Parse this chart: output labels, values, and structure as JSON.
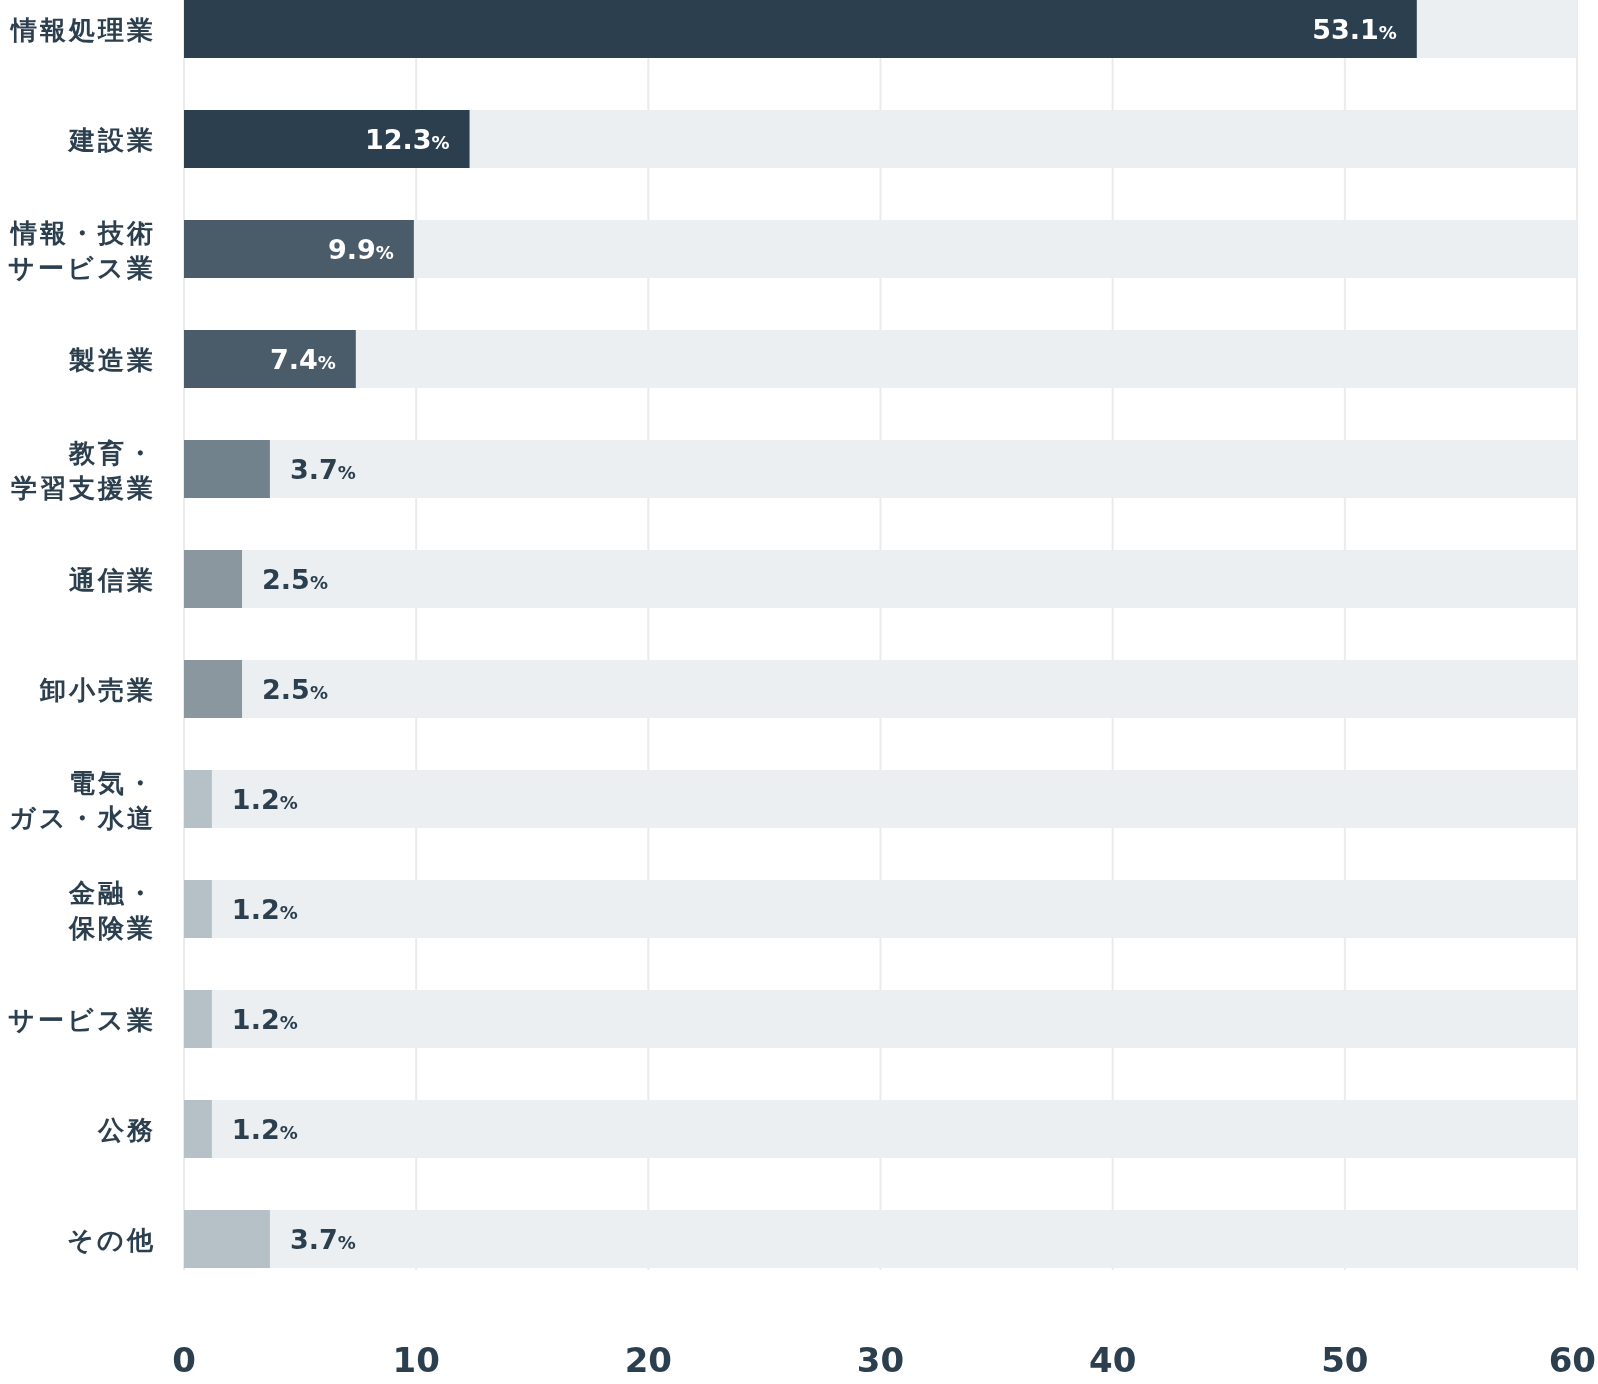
{
  "chart_data": {
    "type": "bar",
    "orientation": "horizontal",
    "categories": [
      "情報処理業",
      "建設業",
      "情報・技術サービス業",
      "製造業",
      "教育・学習支援業",
      "通信業",
      "卸小売業",
      "電気・ガス・水道",
      "金融・保険業",
      "サービス業",
      "公務",
      "その他"
    ],
    "values": [
      53.1,
      12.3,
      9.9,
      7.4,
      3.7,
      2.5,
      2.5,
      1.2,
      1.2,
      1.2,
      1.2,
      3.7
    ],
    "colors": [
      "#2c3f4e",
      "#2c3f4e",
      "#4a5b69",
      "#4a5b69",
      "#72828c",
      "#8a979f",
      "#8a979f",
      "#b5c0c7",
      "#b5c0c7",
      "#b5c0c7",
      "#b5c0c7",
      "#b5c0c7"
    ],
    "value_labels": [
      "53.1%",
      "12.3%",
      "9.9%",
      "7.4%",
      "3.7%",
      "2.5%",
      "2.5%",
      "1.2%",
      "1.2%",
      "1.2%",
      "1.2%",
      "3.7%"
    ],
    "xlim": [
      0,
      60
    ],
    "xticks": [
      0,
      10,
      20,
      30,
      40,
      50,
      60
    ],
    "grid": "x"
  }
}
